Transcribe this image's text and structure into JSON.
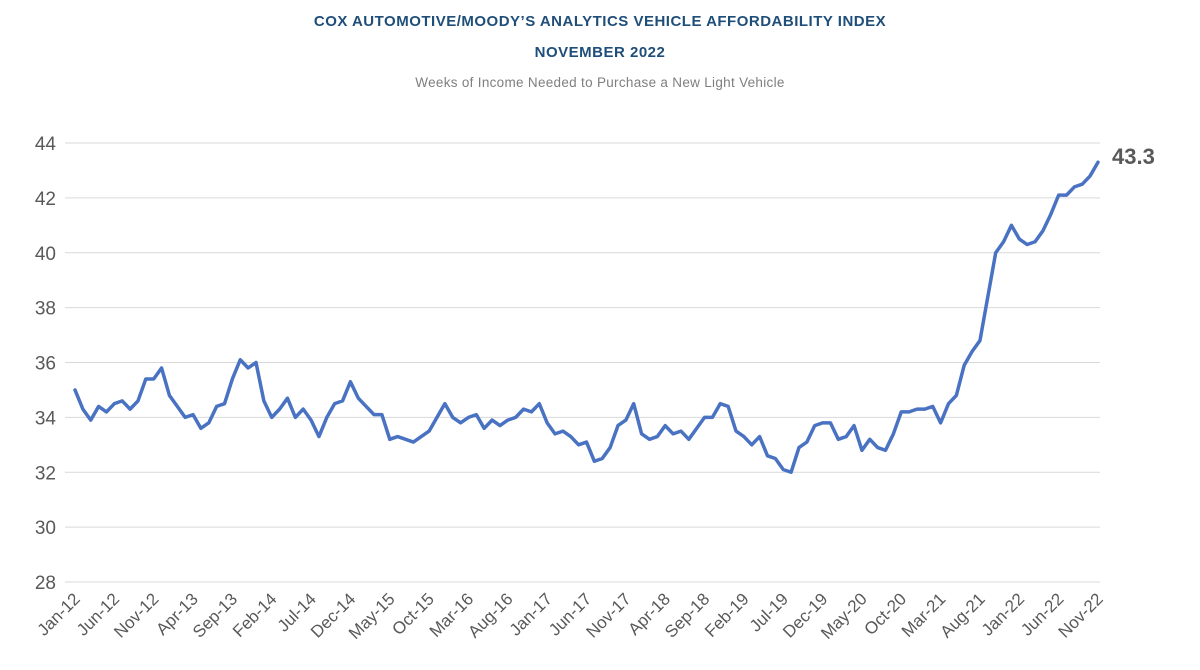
{
  "chart_data": {
    "type": "line",
    "title": "COX AUTOMOTIVE/MOODY’S ANALYTICS VEHICLE AFFORDABILITY INDEX",
    "subtitle": "NOVEMBER 2022",
    "caption": "Weeks of Income Needed to Purchase a New Light Vehicle",
    "xlabel": "",
    "ylabel": "",
    "ylim": [
      28,
      44
    ],
    "yticks": [
      28,
      30,
      32,
      34,
      36,
      38,
      40,
      42,
      44
    ],
    "grid": true,
    "x_tick_labels": [
      "Jan-12",
      "Jun-12",
      "Nov-12",
      "Apr-13",
      "Sep-13",
      "Feb-14",
      "Jul-14",
      "Dec-14",
      "May-15",
      "Oct-15",
      "Mar-16",
      "Aug-16",
      "Jan-17",
      "Jun-17",
      "Nov-17",
      "Apr-18",
      "Sep-18",
      "Feb-19",
      "Jul-19",
      "Dec-19",
      "May-20",
      "Oct-20",
      "Mar-21",
      "Aug-21",
      "Jan-22",
      "Jun-22",
      "Nov-22"
    ],
    "end_label": "43.3",
    "line_color": "#4a72c2",
    "series": [
      {
        "name": "Weeks of Income",
        "values": [
          35.0,
          34.3,
          33.9,
          34.4,
          34.2,
          34.5,
          34.6,
          34.3,
          34.6,
          35.4,
          35.4,
          35.8,
          34.8,
          34.4,
          34.0,
          34.1,
          33.6,
          33.8,
          34.4,
          34.5,
          35.4,
          36.1,
          35.8,
          36.0,
          34.6,
          34.0,
          34.3,
          34.7,
          34.0,
          34.3,
          33.9,
          33.3,
          34.0,
          34.5,
          34.6,
          35.3,
          34.7,
          34.4,
          34.1,
          34.1,
          33.2,
          33.3,
          33.2,
          33.1,
          33.3,
          33.5,
          34.0,
          34.5,
          34.0,
          33.8,
          34.0,
          34.1,
          33.6,
          33.9,
          33.7,
          33.9,
          34.0,
          34.3,
          34.2,
          34.5,
          33.8,
          33.4,
          33.5,
          33.3,
          33.0,
          33.1,
          32.4,
          32.5,
          32.9,
          33.7,
          33.9,
          34.5,
          33.4,
          33.2,
          33.3,
          33.7,
          33.4,
          33.5,
          33.2,
          33.6,
          34.0,
          34.0,
          34.5,
          34.4,
          33.5,
          33.3,
          33.0,
          33.3,
          32.6,
          32.5,
          32.1,
          32.0,
          32.9,
          33.1,
          33.7,
          33.8,
          33.8,
          33.2,
          33.3,
          33.7,
          32.8,
          33.2,
          32.9,
          32.8,
          33.4,
          34.2,
          34.2,
          34.3,
          34.3,
          34.4,
          33.8,
          34.5,
          34.8,
          35.9,
          36.4,
          36.8,
          38.4,
          40.0,
          40.4,
          41.0,
          40.5,
          40.3,
          40.4,
          40.8,
          41.4,
          42.1,
          42.1,
          42.4,
          42.5,
          42.8,
          43.3
        ]
      }
    ]
  }
}
